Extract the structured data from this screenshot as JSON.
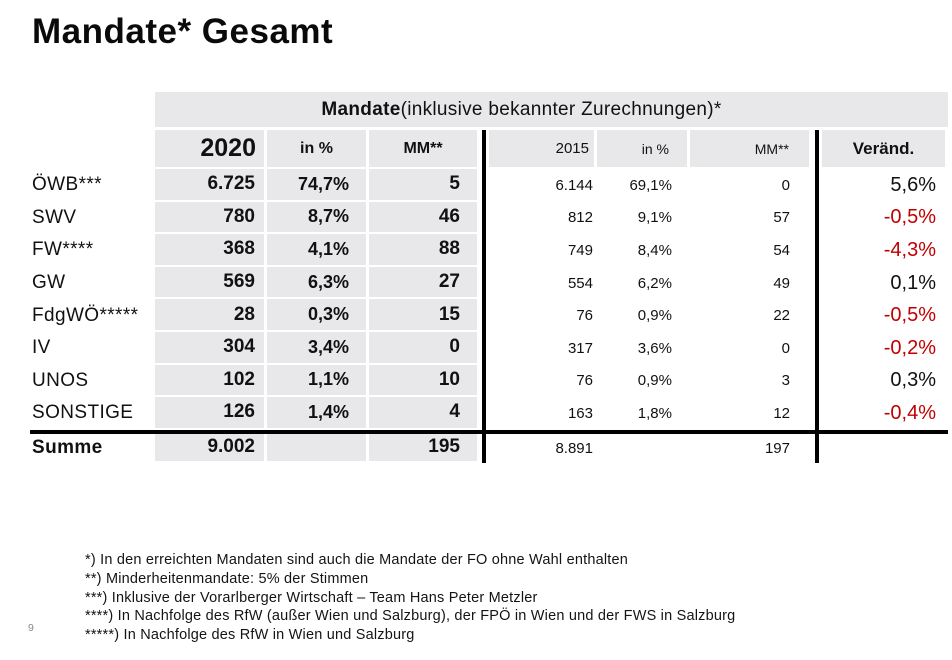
{
  "page": {
    "title": "Mandate* Gesamt",
    "page_number": "9"
  },
  "colors": {
    "cell_gray": "#E8E8EA",
    "negative": "#C00000",
    "text": "#111111"
  },
  "table": {
    "header": {
      "group_bold": "Mandate",
      "group_rest": " (inklusive bekannter Zurechnungen)*",
      "y2020": "2020",
      "p2020": "in %",
      "m2020": "MM**",
      "y2015": "2015",
      "p2015": "in %",
      "m2015": "MM**",
      "change": "Veränd."
    },
    "rows": [
      {
        "label": "ÖWB***",
        "v2020": "6.725",
        "p2020": "74,7%",
        "m2020": "5",
        "v2015": "6.144",
        "p2015": "69,1%",
        "m2015": "0",
        "change": "5,6%",
        "tone": "pos"
      },
      {
        "label": "SWV",
        "v2020": "780",
        "p2020": "8,7%",
        "m2020": "46",
        "v2015": "812",
        "p2015": "9,1%",
        "m2015": "57",
        "change": "-0,5%",
        "tone": "neg"
      },
      {
        "label": "FW****",
        "v2020": "368",
        "p2020": "4,1%",
        "m2020": "88",
        "v2015": "749",
        "p2015": "8,4%",
        "m2015": "54",
        "change": "-4,3%",
        "tone": "neg"
      },
      {
        "label": "GW",
        "v2020": "569",
        "p2020": "6,3%",
        "m2020": "27",
        "v2015": "554",
        "p2015": "6,2%",
        "m2015": "49",
        "change": "0,1%",
        "tone": "pos"
      },
      {
        "label": "FdgWÖ*****",
        "v2020": "28",
        "p2020": "0,3%",
        "m2020": "15",
        "v2015": "76",
        "p2015": "0,9%",
        "m2015": "22",
        "change": "-0,5%",
        "tone": "neg"
      },
      {
        "label": "IV",
        "v2020": "304",
        "p2020": "3,4%",
        "m2020": "0",
        "v2015": "317",
        "p2015": "3,6%",
        "m2015": "0",
        "change": "-0,2%",
        "tone": "neg"
      },
      {
        "label": "UNOS",
        "v2020": "102",
        "p2020": "1,1%",
        "m2020": "10",
        "v2015": "76",
        "p2015": "0,9%",
        "m2015": "3",
        "change": "0,3%",
        "tone": "pos"
      },
      {
        "label": "SONSTIGE",
        "v2020": "126",
        "p2020": "1,4%",
        "m2020": "4",
        "v2015": "163",
        "p2015": "1,8%",
        "m2015": "12",
        "change": "-0,4%",
        "tone": "neg"
      }
    ],
    "total": {
      "label": "Summe",
      "v2020": "9.002",
      "p2020": "",
      "m2020": "195",
      "v2015": "8.891",
      "p2015": "",
      "m2015": "197",
      "change": "",
      "tone": "pos"
    }
  },
  "footnotes": [
    "*) In den erreichten Mandaten sind auch die Mandate der FO ohne Wahl enthalten",
    "**) Minderheitenmandate: 5% der Stimmen",
    "***) Inklusive der Vorarlberger Wirtschaft – Team Hans Peter Metzler",
    "****) In Nachfolge des RfW (außer Wien und Salzburg), der FPÖ in Wien und der FWS in Salzburg",
    "*****) In Nachfolge des RfW in Wien und Salzburg"
  ]
}
